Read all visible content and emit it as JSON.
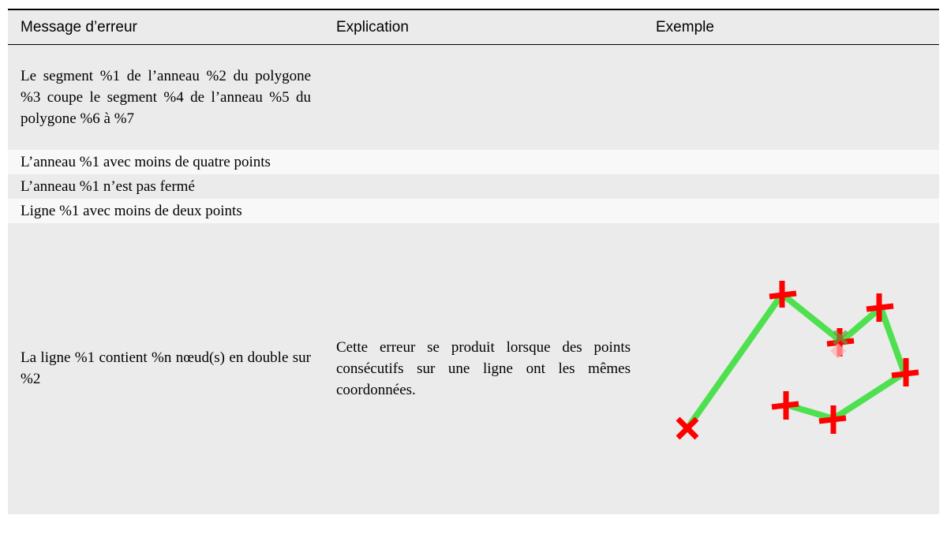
{
  "table": {
    "columns": [
      "Message d’erreur",
      "Explication",
      "Exemple"
    ],
    "rows": [
      {
        "message": "Le segment %1 de l’anneau %2 du polygone %3 coupe le segment %4 de l’anneau %5 du polygone %6 à %7"
      },
      {
        "message": "L’anneau %1 avec moins de quatre points"
      },
      {
        "message": "L’anneau %1 n’est pas fermé"
      },
      {
        "message": "Ligne %1 avec moins de deux points"
      },
      {
        "message": "La ligne %1 contient %n nœud(s) en double sur %2",
        "explanation": "Cette erreur se produit lorsque des points consécutifs sur une ligne ont les mêmes coordonnées."
      }
    ]
  }
}
